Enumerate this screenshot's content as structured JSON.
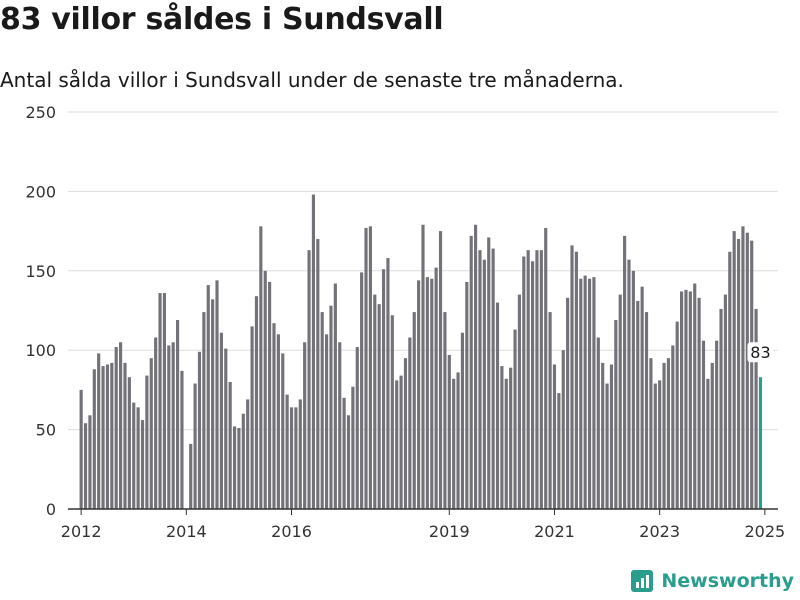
{
  "header": {
    "title": "83 villor såldes i Sundsvall",
    "subtitle": "Antal sålda villor i Sundsvall under de senaste tre månaderna."
  },
  "brand": {
    "name": "Newsworthy",
    "icon": "newsworthy-logo-icon",
    "color": "#2a9d8f"
  },
  "colors": {
    "bar": "#737278",
    "highlight": "#2a9d8f",
    "grid": "#dddddd",
    "axis": "#333333"
  },
  "chart_data": {
    "type": "bar",
    "title": "83 villor såldes i Sundsvall",
    "subtitle": "Antal sålda villor i Sundsvall under de senaste tre månaderna.",
    "xlabel": "",
    "ylabel": "",
    "ylim": [
      0,
      250
    ],
    "yticks": [
      0,
      50,
      100,
      150,
      200,
      250
    ],
    "xtick_labels": [
      "2012",
      "2014",
      "2016",
      "2019",
      "2021",
      "2023",
      "2025"
    ],
    "xlim": [
      "2011-10",
      "2025-04"
    ],
    "grid": true,
    "x_start": "2012-01",
    "x_end": "2025-01",
    "frequency": "monthly",
    "highlight_last": true,
    "highlight_label": "83",
    "values": [
      75,
      54,
      59,
      88,
      98,
      90,
      91,
      92,
      102,
      105,
      92,
      83,
      67,
      64,
      56,
      84,
      95,
      108,
      136,
      136,
      103,
      105,
      119,
      87,
      0,
      41,
      79,
      99,
      124,
      141,
      132,
      144,
      111,
      101,
      80,
      52,
      51,
      60,
      69,
      115,
      134,
      178,
      150,
      143,
      117,
      110,
      98,
      72,
      64,
      64,
      69,
      105,
      163,
      198,
      170,
      124,
      110,
      128,
      142,
      105,
      70,
      59,
      77,
      102,
      149,
      177,
      178,
      135,
      129,
      151,
      158,
      122,
      81,
      84,
      95,
      108,
      124,
      144,
      179,
      146,
      145,
      152,
      175,
      124,
      97,
      82,
      86,
      111,
      143,
      172,
      179,
      163,
      157,
      171,
      164,
      130,
      90,
      82,
      89,
      113,
      135,
      159,
      163,
      156,
      163,
      163,
      177,
      124,
      91,
      73,
      100,
      133,
      166,
      162,
      145,
      147,
      145,
      146,
      108,
      92,
      79,
      91,
      119,
      135,
      172,
      157,
      150,
      131,
      140,
      124,
      95,
      79,
      81,
      92,
      95,
      103,
      118,
      137,
      138,
      137,
      142,
      133,
      106,
      82,
      92,
      106,
      126,
      135,
      162,
      175,
      170,
      178,
      174,
      169,
      126,
      83
    ]
  }
}
